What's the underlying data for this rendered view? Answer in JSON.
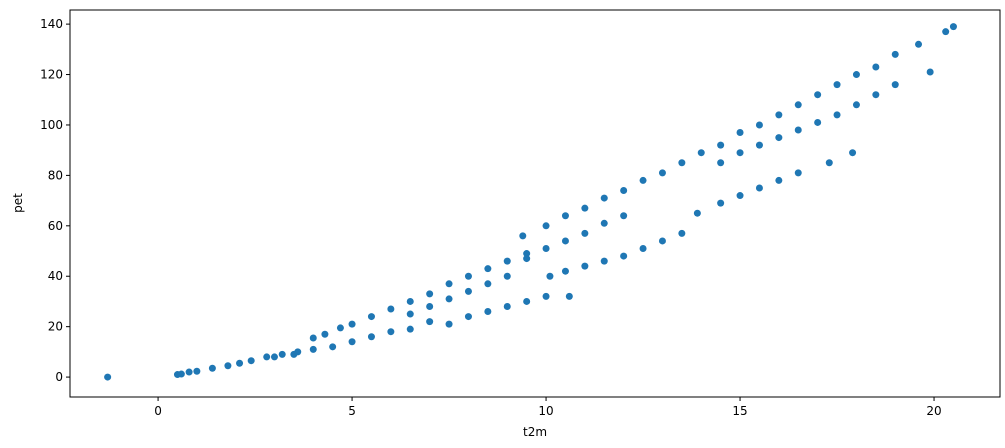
{
  "chart_data": {
    "type": "scatter",
    "xlabel": "t2m",
    "ylabel": "pet",
    "color": "#1f77b4",
    "x": [
      -1.3,
      0.5,
      0.6,
      0.8,
      1,
      1.4,
      1.8,
      2.1,
      2.4,
      2.8,
      3.2,
      3.6,
      4,
      4.3,
      4.7,
      5,
      5.5,
      6,
      6.5,
      7,
      7.5,
      8,
      8.5,
      9,
      9.4,
      9.5,
      10,
      10.5,
      11,
      11.5,
      12,
      12.5,
      13,
      13.5,
      14,
      14.5,
      15,
      15.5,
      16,
      16.5,
      17,
      17.5,
      18,
      18.5,
      19,
      19.6,
      20.3,
      20.5,
      6.5,
      7,
      7.5,
      8,
      8.5,
      9,
      9.5,
      10,
      10.5,
      11,
      11.5,
      12,
      14.5,
      15,
      15.5,
      16,
      16.5,
      17,
      17.5,
      18,
      18.5,
      19,
      19.9,
      3,
      3.5,
      4,
      4.5,
      5,
      5.5,
      6,
      6.5,
      7,
      7.5,
      8,
      8.5,
      9,
      9.5,
      10,
      10.6,
      10.1,
      10.5,
      11,
      11.5,
      12,
      12.5,
      13,
      13.5,
      13.9,
      14.5,
      15,
      15.5,
      16,
      16.5,
      17.3,
      17.9
    ],
    "y": [
      0,
      1,
      1.2,
      2,
      2.3,
      3.5,
      4.5,
      5.5,
      6.5,
      8,
      9,
      10,
      15.5,
      17,
      19.5,
      21,
      24,
      27,
      30,
      33,
      37,
      40,
      43,
      46,
      56,
      49,
      60,
      64,
      67,
      71,
      74,
      78,
      81,
      85,
      89,
      92,
      97,
      100,
      104,
      108,
      112,
      116,
      120,
      123,
      128,
      132,
      137,
      139,
      25,
      28,
      31,
      34,
      37,
      40,
      47,
      51,
      54,
      57,
      61,
      64,
      85,
      89,
      92,
      95,
      98,
      101,
      104,
      108,
      112,
      116,
      121,
      8,
      9,
      11,
      12,
      14,
      16,
      18,
      19,
      22,
      21,
      24,
      26,
      28,
      30,
      32,
      32,
      40,
      42,
      44,
      46,
      48,
      51,
      54,
      57,
      65,
      69,
      72,
      75,
      78,
      81,
      85,
      89
    ],
    "xlim": [
      -2.27,
      21.7
    ],
    "ylim": [
      -7.9,
      145.6
    ],
    "xticks": [
      0,
      5,
      10,
      15,
      20
    ],
    "yticks": [
      0,
      20,
      40,
      60,
      80,
      100,
      120,
      140
    ]
  }
}
